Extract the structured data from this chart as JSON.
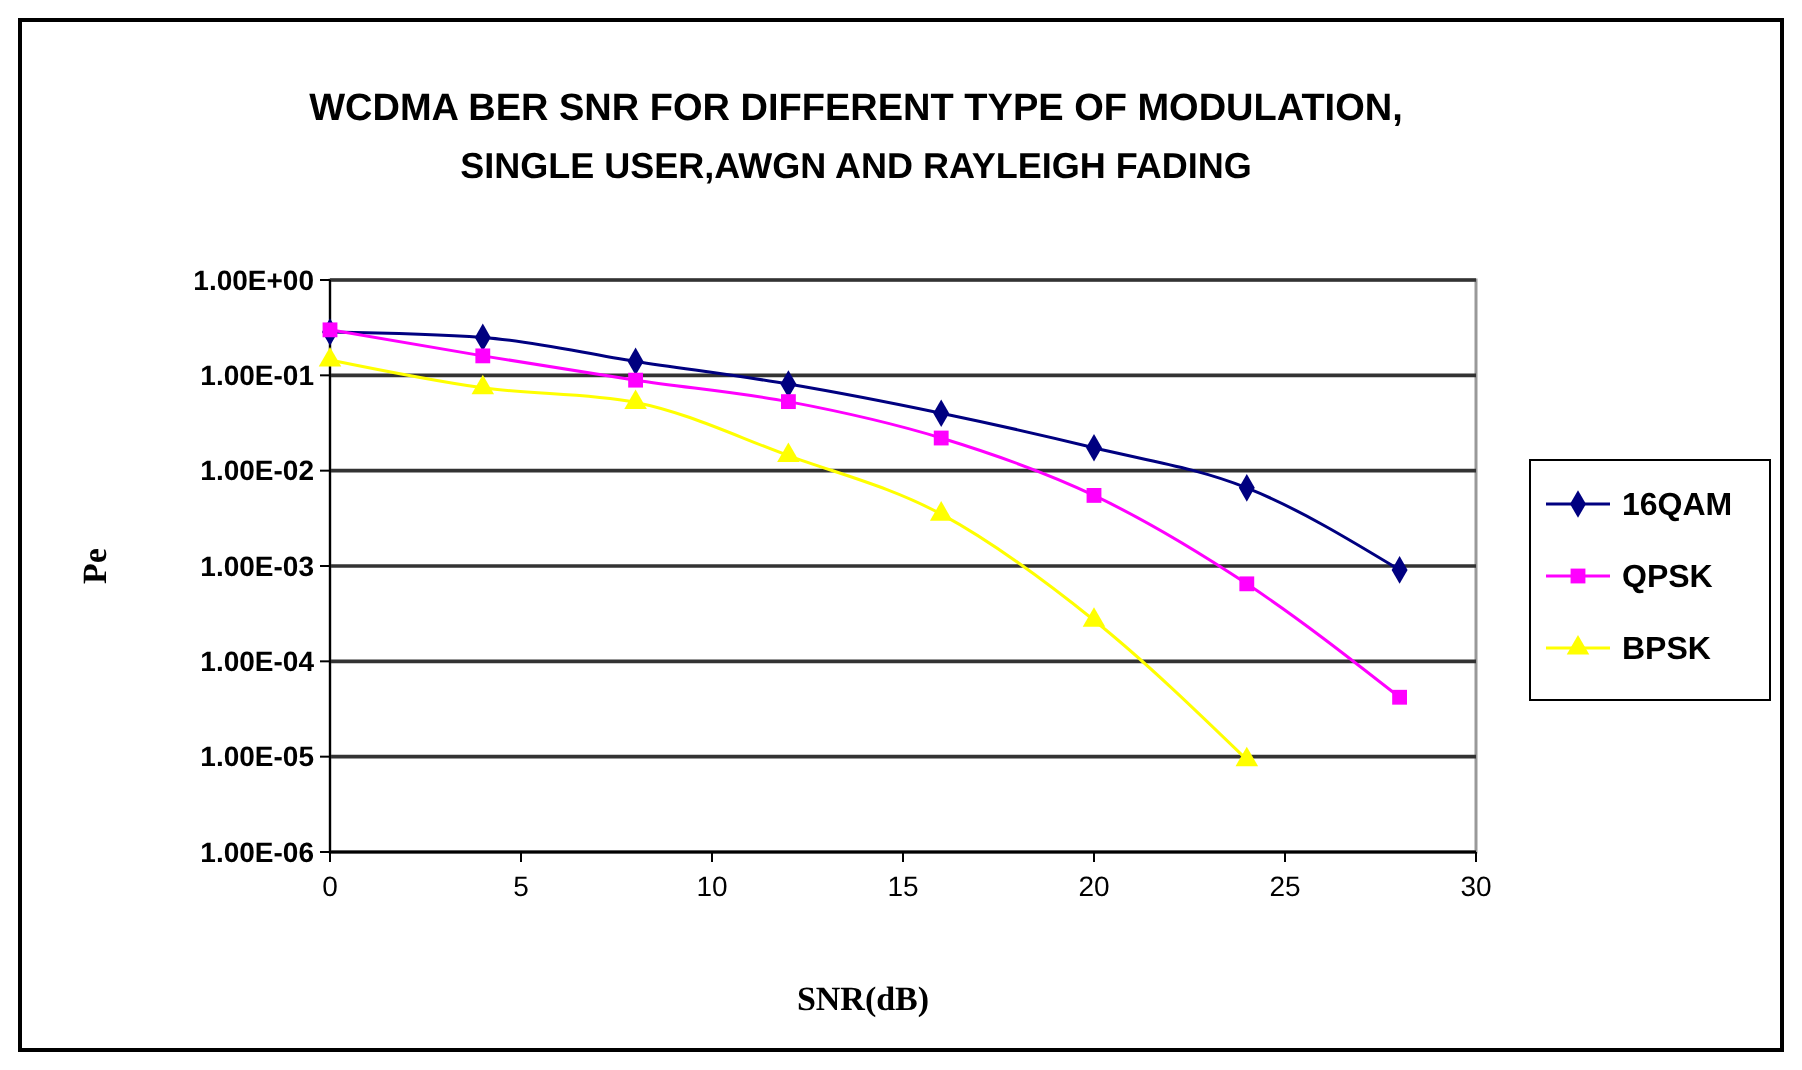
{
  "chart_data": {
    "type": "line",
    "title": "WCDMA BER SNR FOR DIFFERENT TYPE OF MODULATION,",
    "subtitle": "SINGLE USER,AWGN AND RAYLEIGH FADING",
    "xlabel": "SNR(dB)",
    "ylabel": "Pe",
    "x": [
      0,
      4,
      8,
      12,
      16,
      20,
      24,
      28
    ],
    "series": [
      {
        "name": "16QAM",
        "color": "#000080",
        "marker": "diamond",
        "values": [
          0.285,
          0.25,
          0.14,
          0.081,
          0.04,
          0.0174,
          0.0066,
          0.00091
        ]
      },
      {
        "name": "QPSK",
        "color": "#ff00ff",
        "marker": "square",
        "values": [
          0.3,
          0.16,
          0.089,
          0.053,
          0.022,
          0.0055,
          0.00065,
          4.2e-05
        ]
      },
      {
        "name": "BPSK",
        "color": "#ffff00",
        "marker": "triangle",
        "x": [
          0,
          4,
          8,
          12,
          16,
          20,
          24
        ],
        "values": [
          0.145,
          0.074,
          0.052,
          0.0144,
          0.0035,
          0.00027,
          9.3e-06
        ]
      }
    ],
    "xlim": [
      0,
      30
    ],
    "xticks": [
      0,
      5,
      10,
      15,
      20,
      25,
      30
    ],
    "ylim": [
      1e-06,
      1
    ],
    "yticks": [
      {
        "value": 1,
        "label": "1.00E+00"
      },
      {
        "value": 0.1,
        "label": "1.00E-01"
      },
      {
        "value": 0.01,
        "label": "1.00E-02"
      },
      {
        "value": 0.001,
        "label": "1.00E-03"
      },
      {
        "value": 0.0001,
        "label": "1.00E-04"
      },
      {
        "value": 1e-05,
        "label": "1.00E-05"
      },
      {
        "value": 1e-06,
        "label": "1.00E-06"
      }
    ],
    "log": "y",
    "grid": "y",
    "legend": "right"
  }
}
